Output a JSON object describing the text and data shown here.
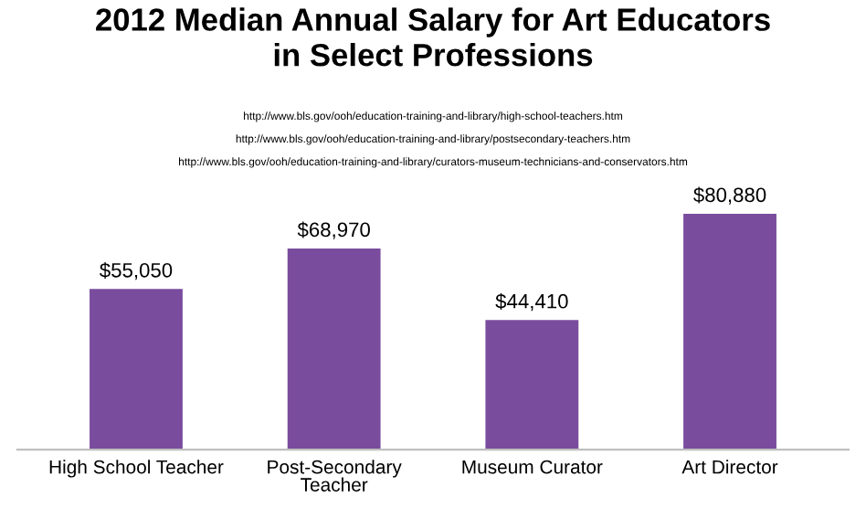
{
  "chart_data": {
    "type": "bar",
    "title": "2012 Median Annual Salary for Art Educators\nin Select Professions",
    "annotations": [
      "http://www.bls.gov/ooh/education-training-and-library/high-school-teachers.htm",
      "http://www.bls.gov/ooh/education-training-and-library/postsecondary-teachers.htm",
      "http://www.bls.gov/ooh/education-training-and-library/curators-museum-technicians-and-conservators.htm"
    ],
    "categories": [
      "High School Teacher",
      "Post-Secondary\nTeacher",
      "Museum Curator",
      "Art Director"
    ],
    "values": [
      55050,
      68970,
      44410,
      80880
    ],
    "value_labels": [
      "$55,050",
      "$68,970",
      "$44,410",
      "$80,880"
    ],
    "color": "#7a4c9e",
    "tick_labels": "x",
    "grid": false,
    "legend": false
  }
}
